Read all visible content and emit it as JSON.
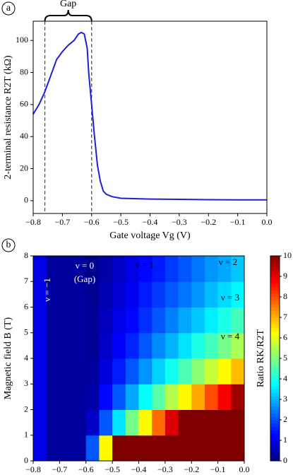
{
  "chart_data": [
    {
      "type": "line",
      "panel": "a",
      "x": [
        -0.8,
        -0.78,
        -0.76,
        -0.74,
        -0.72,
        -0.7,
        -0.68,
        -0.66,
        -0.645,
        -0.635,
        -0.625,
        -0.615,
        -0.61,
        -0.6,
        -0.59,
        -0.58,
        -0.57,
        -0.56,
        -0.55,
        -0.53,
        -0.5,
        -0.4,
        -0.3,
        -0.2,
        -0.1,
        0
      ],
      "series": [
        {
          "color": "#1f1fd6",
          "values": [
            54,
            60,
            68,
            78,
            88,
            93,
            97,
            100,
            104,
            105,
            104,
            95,
            80,
            60,
            40,
            22,
            12,
            6,
            4,
            2.5,
            1.5,
            1,
            0.8,
            0.6,
            0.5,
            0.5
          ]
        }
      ],
      "xlim": [
        -0.8,
        0
      ],
      "ylim": [
        -8,
        112
      ],
      "xticks": [
        {
          "value": -0.8,
          "label": "−0.8"
        },
        {
          "value": -0.7,
          "label": "−0.7"
        },
        {
          "value": -0.6,
          "label": "−0.6"
        },
        {
          "value": -0.5,
          "label": "−0.5"
        },
        {
          "value": -0.4,
          "label": "−0.4"
        },
        {
          "value": -0.3,
          "label": "−0.3"
        },
        {
          "value": -0.2,
          "label": "−0.2"
        },
        {
          "value": -0.1,
          "label": "−0.1"
        },
        {
          "value": 0,
          "label": "0.0"
        }
      ],
      "yticks": [
        0,
        20,
        40,
        60,
        80,
        100
      ],
      "xlabel": "Gate voltage Vg (V)",
      "ylabel": "2-terminal resistance R2T (kΩ)",
      "vlines": [
        -0.76,
        -0.6
      ],
      "vline_label": "Gap"
    },
    {
      "type": "heatmap",
      "panel": "b",
      "x": [
        -0.8,
        -0.75,
        -0.7,
        -0.65,
        -0.6,
        -0.55,
        -0.5,
        -0.45,
        -0.4,
        -0.35,
        -0.3,
        -0.25,
        -0.2,
        -0.15,
        -0.1,
        -0.05,
        0
      ],
      "y": [
        0,
        1,
        2,
        3,
        4,
        5,
        6,
        7,
        8
      ],
      "z": [
        [
          1,
          0.3,
          0.3,
          0.3,
          2.1,
          6.3,
          10,
          10,
          10,
          10,
          10,
          10,
          10,
          10,
          10,
          10
        ],
        [
          1,
          0.3,
          0.3,
          0.3,
          0.7,
          2.1,
          3.5,
          4.9,
          6.3,
          7.7,
          9.1,
          10,
          10,
          10,
          10,
          10
        ],
        [
          1,
          0.3,
          0.3,
          0.3,
          0.4,
          1.3,
          2.1,
          2.9,
          3.8,
          4.6,
          5.5,
          6.3,
          7.1,
          8.0,
          8.8,
          9.7
        ],
        [
          1,
          0.3,
          0.3,
          0.3,
          0.3,
          0.9,
          1.5,
          2.1,
          2.7,
          3.3,
          3.9,
          4.5,
          5.1,
          5.7,
          6.3,
          6.9
        ],
        [
          1,
          0.3,
          0.3,
          0.3,
          0.2,
          0.7,
          1.2,
          1.6,
          2.1,
          2.6,
          3.0,
          3.5,
          4.0,
          4.4,
          4.9,
          5.4
        ],
        [
          1,
          0.3,
          0.3,
          0.3,
          0.2,
          0.6,
          1.0,
          1.3,
          1.7,
          2.1,
          2.5,
          2.9,
          3.2,
          3.6,
          4.0,
          4.4
        ],
        [
          1,
          0.3,
          0.3,
          0.3,
          0.2,
          0.5,
          0.8,
          1.1,
          1.5,
          1.8,
          2.1,
          2.4,
          2.7,
          3.1,
          3.4,
          3.7
        ],
        [
          1,
          0.3,
          0.3,
          0.3,
          0.1,
          0.4,
          0.7,
          1.0,
          1.3,
          1.5,
          1.8,
          2.1,
          2.4,
          2.7,
          2.9,
          3.2
        ]
      ],
      "colormap": "jet",
      "zlim": [
        0,
        10
      ],
      "zticks": [
        0,
        1,
        2,
        3,
        4,
        5,
        6,
        7,
        8,
        9,
        10
      ],
      "xlim": [
        -0.8,
        0
      ],
      "ylim": [
        0,
        8
      ],
      "xticks": [
        {
          "value": -0.8,
          "label": "−0.8"
        },
        {
          "value": -0.7,
          "label": "−0.7"
        },
        {
          "value": -0.6,
          "label": "−0.6"
        },
        {
          "value": -0.5,
          "label": "−0.5"
        },
        {
          "value": -0.4,
          "label": "−0.4"
        },
        {
          "value": -0.3,
          "label": "−0.3"
        },
        {
          "value": -0.2,
          "label": "−0.2"
        },
        {
          "value": -0.1,
          "label": "−0.1"
        },
        {
          "value": 0,
          "label": "0.0"
        }
      ],
      "yticks": [
        0,
        1,
        2,
        3,
        4,
        5,
        6,
        7,
        8
      ],
      "xlabel": "Gate voltage Vg (V)",
      "ylabel": "Magnetic field B (T)",
      "zlabel": "Ratio RK/R2T",
      "annotations": [
        "ν = −1",
        "ν = 0",
        "(Gap)",
        "ν = 1",
        "ν = 2",
        "ν = 3",
        "ν = 4"
      ]
    }
  ]
}
